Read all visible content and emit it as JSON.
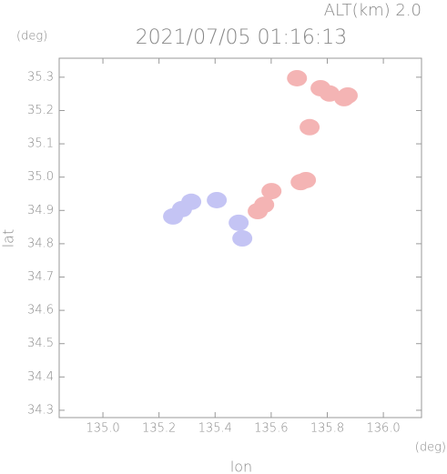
{
  "header": "ALT(km) 2.0",
  "chart_data": {
    "type": "scatter",
    "title": "2021/07/05 01:16:13",
    "x_unit": "(deg)",
    "y_unit": "(deg)",
    "x_label": "lon",
    "y_label": "lat",
    "xlim": [
      134.844,
      136.136
    ],
    "ylim": [
      34.278,
      35.357
    ],
    "xticks": [
      {
        "value": 135,
        "label": "135.0"
      },
      {
        "value": 135.2,
        "label": "135.2"
      },
      {
        "value": 135.4,
        "label": "135.4"
      },
      {
        "value": 135.6,
        "label": "135.6"
      },
      {
        "value": 135.8,
        "label": "135.8"
      },
      {
        "value": 136,
        "label": "136.0"
      }
    ],
    "yticks": [
      34.3,
      34.4,
      34.5,
      34.6,
      34.7,
      34.8,
      34.9,
      {
        "value": 35,
        "label": "35.0"
      },
      35.1,
      35.2,
      35.3
    ],
    "series": [
      {
        "color": "#f4b4b4",
        "x": [
          135.692,
          135.776,
          135.808,
          135.86,
          135.873,
          135.737,
          135.724,
          135.705,
          135.601,
          135.575,
          135.552
        ],
        "values": [
          35.297,
          35.267,
          35.251,
          35.237,
          35.245,
          35.15,
          34.991,
          34.985,
          34.958,
          34.917,
          34.898
        ]
      },
      {
        "color": "#c4c4f4",
        "x": [
          135.282,
          135.25,
          135.315,
          135.406,
          135.484,
          135.497
        ],
        "values": [
          34.904,
          34.882,
          34.926,
          34.931,
          34.863,
          34.816
        ]
      }
    ]
  }
}
